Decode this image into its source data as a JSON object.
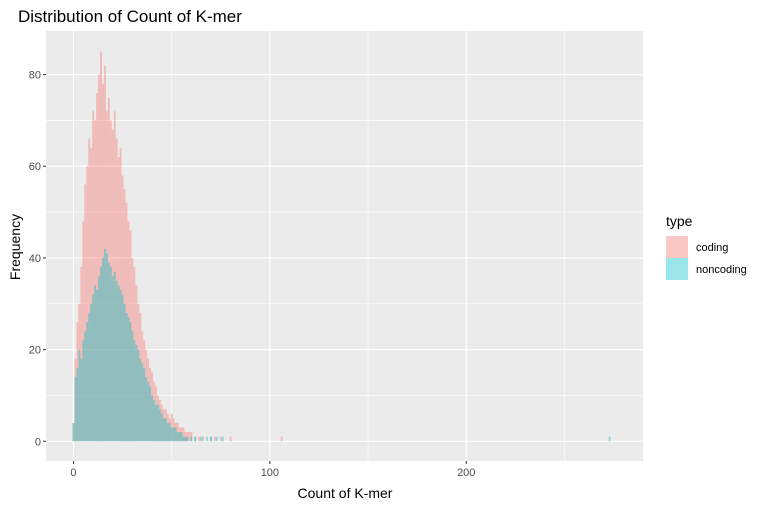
{
  "chart_data": {
    "type": "histogram",
    "title": "Distribution of Count of K-mer",
    "xlabel": "Count of K-mer",
    "ylabel": "Frequency",
    "xlim": [
      -14,
      290
    ],
    "ylim": [
      -4.3,
      89.5
    ],
    "bin_width": 1,
    "x_ticks": [
      0,
      100,
      200
    ],
    "x_tick_labels": [
      "0",
      "100",
      "200"
    ],
    "y_ticks": [
      0,
      20,
      40,
      60,
      80
    ],
    "y_tick_labels": [
      "0",
      "20",
      "40",
      "60",
      "80"
    ],
    "legend": {
      "title": "type",
      "position": "right",
      "entries": [
        "coding",
        "noncoding"
      ]
    },
    "colors": {
      "coding": "#f8766d",
      "noncoding": "#00bfc4",
      "alpha": 0.4,
      "panel": "#ebebeb",
      "grid": "#ffffff"
    },
    "series": [
      {
        "name": "coding",
        "bins": [
          [
            0,
            4
          ],
          [
            1,
            18
          ],
          [
            2,
            26
          ],
          [
            3,
            30
          ],
          [
            4,
            38
          ],
          [
            5,
            48
          ],
          [
            6,
            56
          ],
          [
            7,
            60
          ],
          [
            8,
            66
          ],
          [
            9,
            64
          ],
          [
            10,
            72
          ],
          [
            11,
            70
          ],
          [
            12,
            76
          ],
          [
            13,
            80
          ],
          [
            14,
            85
          ],
          [
            15,
            78
          ],
          [
            16,
            82
          ],
          [
            17,
            72
          ],
          [
            18,
            75
          ],
          [
            19,
            70
          ],
          [
            20,
            68
          ],
          [
            21,
            72
          ],
          [
            22,
            66
          ],
          [
            23,
            62
          ],
          [
            24,
            64
          ],
          [
            25,
            58
          ],
          [
            26,
            55
          ],
          [
            27,
            52
          ],
          [
            28,
            48
          ],
          [
            29,
            46
          ],
          [
            30,
            40
          ],
          [
            31,
            38
          ],
          [
            32,
            34
          ],
          [
            33,
            30
          ],
          [
            34,
            28
          ],
          [
            35,
            24
          ],
          [
            36,
            22
          ],
          [
            37,
            20
          ],
          [
            38,
            18
          ],
          [
            39,
            16
          ],
          [
            40,
            15
          ],
          [
            41,
            13
          ],
          [
            42,
            12
          ],
          [
            43,
            10
          ],
          [
            44,
            9
          ],
          [
            45,
            8
          ],
          [
            46,
            7
          ],
          [
            47,
            7
          ],
          [
            48,
            6
          ],
          [
            49,
            5
          ],
          [
            50,
            6
          ],
          [
            51,
            5
          ],
          [
            52,
            4
          ],
          [
            53,
            4
          ],
          [
            54,
            3
          ],
          [
            55,
            3
          ],
          [
            56,
            3
          ],
          [
            57,
            2
          ],
          [
            58,
            2
          ],
          [
            59,
            2
          ],
          [
            60,
            2
          ],
          [
            62,
            1
          ],
          [
            64,
            1
          ],
          [
            66,
            1
          ],
          [
            70,
            1
          ],
          [
            72,
            1
          ],
          [
            75,
            1
          ],
          [
            80,
            1
          ],
          [
            106,
            1
          ]
        ]
      },
      {
        "name": "noncoding",
        "bins": [
          [
            0,
            4
          ],
          [
            1,
            14
          ],
          [
            2,
            16
          ],
          [
            3,
            20
          ],
          [
            4,
            18
          ],
          [
            5,
            22
          ],
          [
            6,
            24
          ],
          [
            7,
            26
          ],
          [
            8,
            28
          ],
          [
            9,
            30
          ],
          [
            10,
            32
          ],
          [
            11,
            34
          ],
          [
            12,
            33
          ],
          [
            13,
            36
          ],
          [
            14,
            38
          ],
          [
            15,
            40
          ],
          [
            16,
            42
          ],
          [
            17,
            41
          ],
          [
            18,
            39
          ],
          [
            19,
            38
          ],
          [
            20,
            36
          ],
          [
            21,
            37
          ],
          [
            22,
            35
          ],
          [
            23,
            34
          ],
          [
            24,
            33
          ],
          [
            25,
            32
          ],
          [
            26,
            30
          ],
          [
            27,
            28
          ],
          [
            28,
            27
          ],
          [
            29,
            26
          ],
          [
            30,
            24
          ],
          [
            31,
            22
          ],
          [
            32,
            21
          ],
          [
            33,
            20
          ],
          [
            34,
            18
          ],
          [
            35,
            17
          ],
          [
            36,
            16
          ],
          [
            37,
            14
          ],
          [
            38,
            13
          ],
          [
            39,
            12
          ],
          [
            40,
            10
          ],
          [
            41,
            9
          ],
          [
            42,
            8
          ],
          [
            43,
            8
          ],
          [
            44,
            7
          ],
          [
            45,
            6
          ],
          [
            46,
            5
          ],
          [
            47,
            5
          ],
          [
            48,
            4
          ],
          [
            49,
            4
          ],
          [
            50,
            3
          ],
          [
            51,
            3
          ],
          [
            52,
            3
          ],
          [
            53,
            2
          ],
          [
            54,
            2
          ],
          [
            55,
            2
          ],
          [
            56,
            1
          ],
          [
            57,
            1
          ],
          [
            58,
            1
          ],
          [
            60,
            1
          ],
          [
            62,
            1
          ],
          [
            65,
            1
          ],
          [
            68,
            1
          ],
          [
            70,
            1
          ],
          [
            73,
            1
          ],
          [
            76,
            1
          ],
          [
            273,
            1
          ]
        ]
      }
    ]
  }
}
